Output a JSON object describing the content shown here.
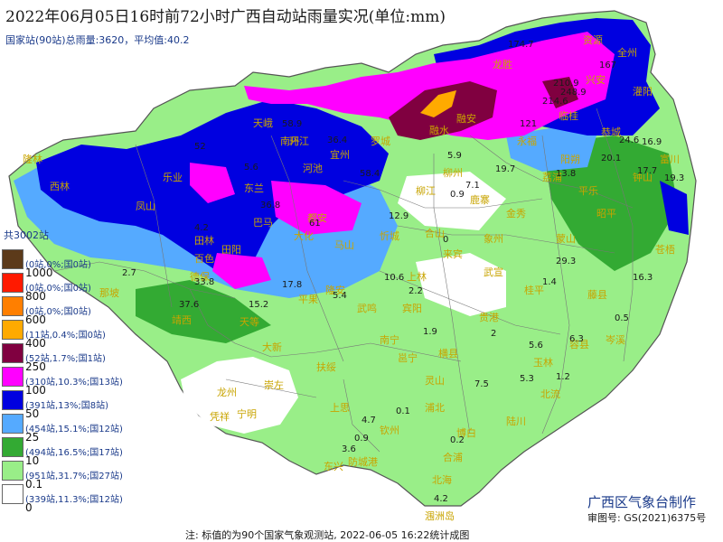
{
  "title": "2022年06月05日16时前72小时广西自动站雨量实况(单位:mm)",
  "subtitle": "国家站(90站)总雨量:3620，平均值:40.2",
  "legend": {
    "total": "共3002站",
    "items": [
      {
        "threshold": "",
        "stats": "(0站,0%;国0站)",
        "color": "#5c3a1a"
      },
      {
        "threshold": "1000",
        "stats": "(0站,0%;国0站)",
        "color": "#ff1a00"
      },
      {
        "threshold": "800",
        "stats": "(0站,0%;国0站)",
        "color": "#ff7f00"
      },
      {
        "threshold": "600",
        "stats": "(11站,0.4%;国0站)",
        "color": "#ffaa00"
      },
      {
        "threshold": "400",
        "stats": "(52站,1.7%;国1站)",
        "color": "#800040"
      },
      {
        "threshold": "250",
        "stats": "(310站,10.3%;国13站)",
        "color": "#ff00ff"
      },
      {
        "threshold": "100",
        "stats": "(391站,13%;国8站)",
        "color": "#0000e0"
      },
      {
        "threshold": "50",
        "stats": "(454站,15.1%;国12站)",
        "color": "#55aaff"
      },
      {
        "threshold": "25",
        "stats": "(494站,16.5%;国17站)",
        "color": "#33aa33"
      },
      {
        "threshold": "10",
        "stats": "(951站,31.7%;国27站)",
        "color": "#99ee88"
      },
      {
        "threshold": "0.1",
        "stats": "(339站,11.3%;国12站)",
        "color": "#ffffff"
      },
      {
        "threshold": "0",
        "stats": "",
        "color": "#ffffff"
      }
    ]
  },
  "agency": "广西区气象台制作",
  "review_number": "审图号: GS(2021)6375号",
  "footnote": "注: 标值的为90个国家气象观测站, 2022-06-05 16:22统计成图",
  "cities": [
    "全州",
    "兴安",
    "临桂",
    "永福",
    "融安",
    "环江",
    "河池",
    "东兰",
    "凤山",
    "乐业",
    "隆林",
    "西林",
    "田林",
    "百色",
    "田阳",
    "那坡",
    "靖西",
    "大新",
    "龙州",
    "宁明",
    "凭祥",
    "崇左",
    "扶绥",
    "上思",
    "东兴",
    "防城港",
    "钦州",
    "北海",
    "涠洲岛",
    "合浦",
    "浦北",
    "灵山",
    "横县",
    "宾阳",
    "武鸣",
    "马山",
    "来宾",
    "象州",
    "武宣",
    "桂平",
    "贵港",
    "玉林",
    "北流",
    "容县",
    "陆川",
    "博白",
    "藤县",
    "岑溪",
    "苍梧",
    "昭平",
    "钟山",
    "富川",
    "平乐",
    "蒙山",
    "金秀",
    "鹿寨",
    "柳州",
    "柳江",
    "南宁",
    "邕宁",
    "上林",
    "宜州",
    "罗城",
    "融水",
    "龙胜",
    "资源",
    "灌阳",
    "恭城",
    "阳朔",
    "荔浦",
    "天峨",
    "南丹",
    "巴马",
    "都安",
    "大化",
    "平果",
    "德保",
    "天等",
    "隆安",
    "忻城",
    "合山"
  ],
  "station_values": [
    "174.7",
    "167",
    "210.9",
    "214.6",
    "248.9",
    "121",
    "24.6",
    "16.9",
    "20.1",
    "13.8",
    "17.7",
    "19.3",
    "58.9",
    "36.4",
    "5.6",
    "58.4",
    "5.9",
    "19.7",
    "7.1",
    "52",
    "0.9",
    "61",
    "36.8",
    "12.9",
    "4.2",
    "33.8",
    "17.8",
    "10.6",
    "2.2",
    "5.4",
    "29.3",
    "16.3",
    "37.6",
    "0.5",
    "15.2",
    "1.9",
    "5.6",
    "5.3",
    "1.2",
    "7.5",
    "4.7",
    "0.1",
    "0.9",
    "0.2",
    "4.2",
    "2.7",
    "3.6",
    "1.4",
    "0",
    "2",
    "6.3"
  ]
}
